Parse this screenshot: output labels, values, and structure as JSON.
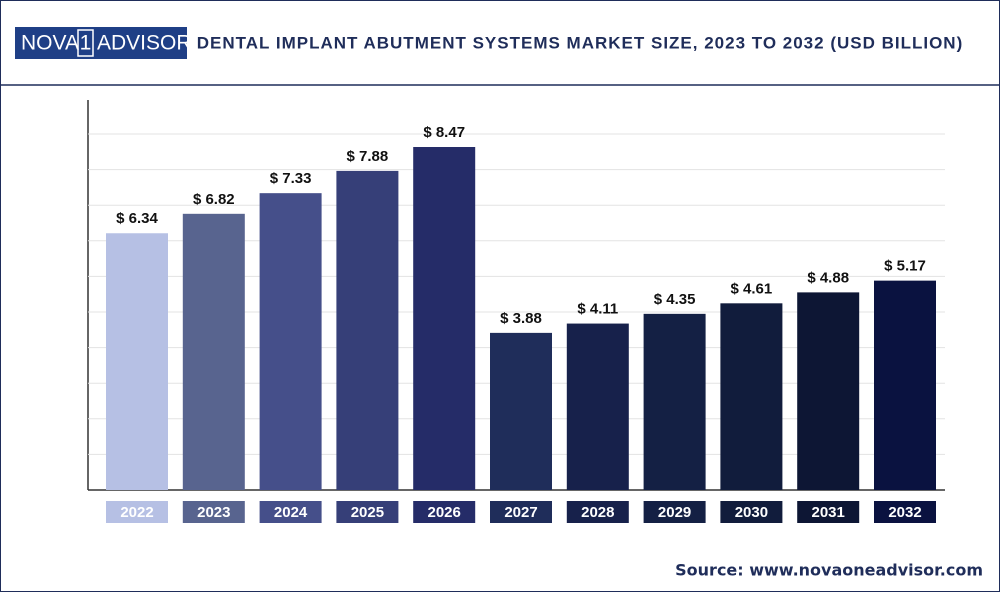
{
  "header": {
    "logo": [
      "NOVA",
      "1",
      "ADVISOR"
    ]
  },
  "chart_data": {
    "type": "bar",
    "title": "DENTAL IMPLANT ABUTMENT SYSTEMS MARKET SIZE, 2023 TO 2032 (USD BILLION)",
    "categories": [
      "2022",
      "2023",
      "2024",
      "2025",
      "2026",
      "2027",
      "2028",
      "2029",
      "2030",
      "2031",
      "2032"
    ],
    "values": [
      6.34,
      6.82,
      7.33,
      7.88,
      8.47,
      3.88,
      4.11,
      4.35,
      4.61,
      4.88,
      5.17
    ],
    "value_labels": [
      "$ 6.34",
      "$ 6.82",
      "$ 7.33",
      "$ 7.88",
      "$ 8.47",
      "$ 3.88",
      "$ 4.11",
      "$ 4.35",
      "$ 4.61",
      "$ 4.88",
      "$ 5.17"
    ],
    "colors": [
      "#b6c0e4",
      "#58648f",
      "#454f8a",
      "#363f78",
      "#252c68",
      "#1f2d5a",
      "#17214b",
      "#142044",
      "#111c3c",
      "#0d1634",
      "#0a1240"
    ],
    "grid": true
  },
  "source": "Source: www.novaoneadvisor.com"
}
